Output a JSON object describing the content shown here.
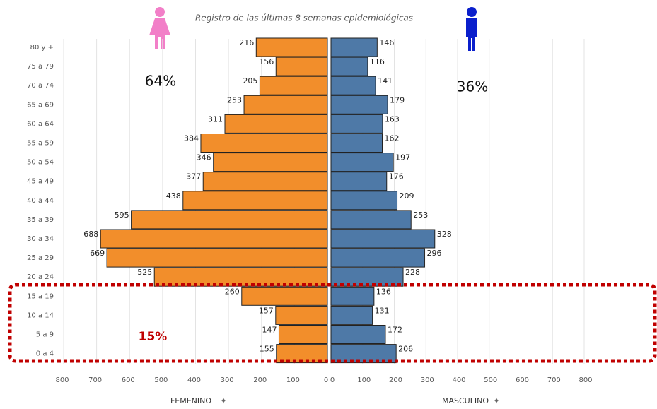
{
  "chart_data": {
    "type": "pyramid",
    "title": "Registro de las últimas 8 semanas epidemiológicas",
    "categories": [
      "80 y +",
      "75 a 79",
      "70 a 74",
      "65 a 69",
      "60 a 64",
      "55 a 59",
      "50 a 54",
      "45 a 49",
      "40 a 44",
      "35 a 39",
      "30 a 34",
      "25 a 29",
      "20 a 24",
      "15 a 19",
      "10 a 14",
      "5 a 9",
      "0 a 4"
    ],
    "series": [
      {
        "name": "FEMENINO",
        "color": "#f28e2b",
        "axis": "x",
        "values": [
          216,
          156,
          205,
          253,
          311,
          384,
          346,
          377,
          438,
          595,
          688,
          669,
          525,
          260,
          157,
          147,
          155
        ]
      },
      {
        "name": "MASCULINO",
        "color": "#4e79a7",
        "axis": "x2",
        "values": [
          146,
          116,
          141,
          179,
          163,
          162,
          197,
          176,
          209,
          253,
          328,
          296,
          228,
          136,
          131,
          172,
          206
        ]
      }
    ],
    "xlim": [
      0,
      800
    ],
    "xticks": [
      0,
      100,
      200,
      300,
      400,
      500,
      600,
      700,
      800
    ],
    "x2lim": [
      0,
      800
    ],
    "x2ticks": [
      0,
      100,
      200,
      300,
      400,
      500,
      600,
      700,
      800
    ],
    "grid": true,
    "annotations": [
      "64%",
      "36%",
      "15%"
    ]
  }
}
